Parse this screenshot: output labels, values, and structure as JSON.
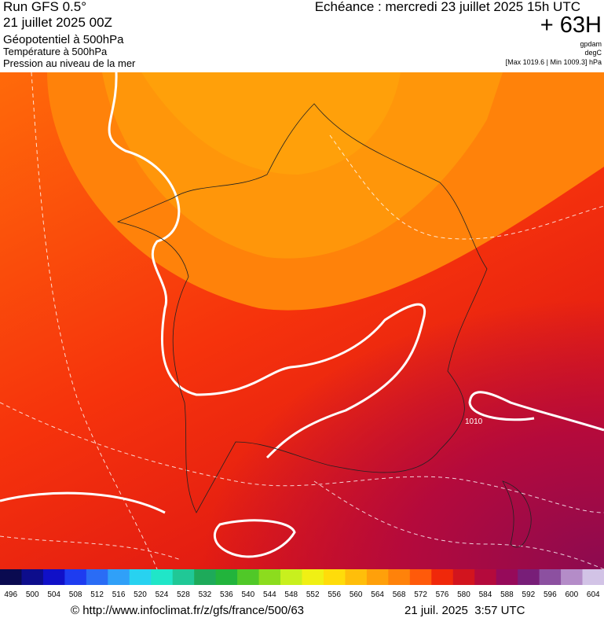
{
  "header": {
    "model": "Run GFS 0.5°",
    "run": "21 juillet 2025 00Z",
    "field1": "Géopotentiel à 500hPa",
    "field2": "Température à 500hPa",
    "field3": "Pression au niveau de la mer",
    "valid": "Echéance : mercredi 23 juillet 2025 15h UTC",
    "lead": "+ 63H",
    "unit1": "gpdam",
    "unit2": "degC",
    "pressure_range": "[Max 1019.6 | Min 1009.3] hPa"
  },
  "map": {
    "isobar_label": "1010"
  },
  "colorbar": {
    "labels": [
      496,
      500,
      504,
      508,
      512,
      516,
      520,
      524,
      528,
      532,
      536,
      540,
      544,
      548,
      552,
      556,
      560,
      564,
      568,
      572,
      576,
      580,
      584,
      588,
      592,
      596,
      600,
      604
    ],
    "colors": [
      "#0a0a50",
      "#0d0d8c",
      "#1010c8",
      "#1e3cf0",
      "#2a6cf5",
      "#30a0f8",
      "#28d2f0",
      "#20e6c8",
      "#20c896",
      "#1eaa5a",
      "#22b43c",
      "#50c828",
      "#8cdc1e",
      "#c8f01e",
      "#f0f014",
      "#ffdc0a",
      "#ffbe0a",
      "#ffa00a",
      "#ff820a",
      "#ff5a0a",
      "#f0280a",
      "#d2141e",
      "#b40a3c",
      "#960a5a",
      "#781e78",
      "#8c50a0",
      "#b48cc8",
      "#d2c3e6"
    ]
  },
  "footer": {
    "url": "© http://www.infoclimat.fr/z/gfs/france/500/63",
    "timestamp": "21 juil. 2025  3:57 UTC"
  }
}
